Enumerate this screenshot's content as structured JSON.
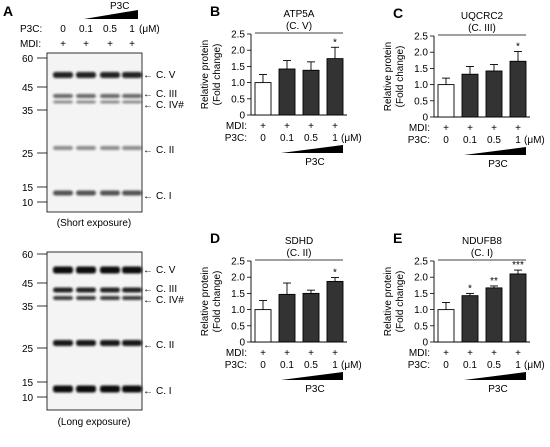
{
  "figure": {
    "panel_a": {
      "label": "A",
      "p3c_label": "P3C:",
      "p3c_title": "P3C",
      "doses": [
        "0",
        "0.1",
        "0.5",
        "1"
      ],
      "dose_unit": "(μM)",
      "mdi_label": "MDI:",
      "mdi_signs": [
        "+",
        "+",
        "+",
        "+"
      ],
      "blots": [
        {
          "caption": "(Short exposure)",
          "mw_ticks": [
            "60",
            "45",
            "35",
            "25",
            "15",
            "10"
          ],
          "bands": [
            "C. V",
            "C. III",
            "C. IV#",
            "C. II",
            "C. I"
          ]
        },
        {
          "caption": "(Long exposure)",
          "mw_ticks": [
            "60",
            "45",
            "35",
            "25",
            "15",
            "10"
          ],
          "bands": [
            "C. V",
            "C. III",
            "C. IV#",
            "C. II",
            "C. I"
          ]
        }
      ]
    }
  },
  "chart_data": [
    {
      "panel": "B",
      "type": "bar",
      "title": "ATP5A",
      "subtitle": "(C. V)",
      "ylabel": [
        "Relative protein",
        "(Fold change)"
      ],
      "ylim": [
        0,
        2.5
      ],
      "yticks": [
        "0",
        "0.5",
        "1.0",
        "1.5",
        "2.0",
        "2.5"
      ],
      "categories": [
        "0",
        "0.1",
        "0.5",
        "1"
      ],
      "mdi": [
        "+",
        "+",
        "+",
        "+"
      ],
      "values": [
        1.0,
        1.42,
        1.38,
        1.74
      ],
      "errors": [
        0.25,
        0.26,
        0.26,
        0.35
      ],
      "sig": [
        "",
        "",
        "",
        "*"
      ],
      "row_labels": [
        "MDI:",
        "P3C:"
      ],
      "unit": "(μM)",
      "group_label": "P3C"
    },
    {
      "panel": "C",
      "type": "bar",
      "title": "UQCRC2",
      "subtitle": "(C. III)",
      "ylabel": [
        "Relative protein",
        "(Fold change)"
      ],
      "ylim": [
        0,
        2.5
      ],
      "yticks": [
        "0",
        "0.5",
        "1.0",
        "1.5",
        "2.0",
        "2.5"
      ],
      "categories": [
        "0",
        "0.1",
        "0.5",
        "1"
      ],
      "mdi": [
        "+",
        "+",
        "+",
        "+"
      ],
      "values": [
        1.0,
        1.32,
        1.42,
        1.72
      ],
      "errors": [
        0.2,
        0.24,
        0.2,
        0.3
      ],
      "sig": [
        "",
        "",
        "",
        "*"
      ],
      "row_labels": [
        "MDI:",
        "P3C:"
      ],
      "unit": "(μM)",
      "group_label": "P3C"
    },
    {
      "panel": "D",
      "type": "bar",
      "title": "SDHD",
      "subtitle": "(C. II)",
      "ylabel": [
        "Relative protein",
        "(Fold change)"
      ],
      "ylim": [
        0,
        2.5
      ],
      "yticks": [
        "0",
        "0.5",
        "1.0",
        "1.5",
        "2.0",
        "2.5"
      ],
      "categories": [
        "0",
        "0.1",
        "0.5",
        "1"
      ],
      "mdi": [
        "+",
        "+",
        "+",
        "+"
      ],
      "values": [
        1.0,
        1.47,
        1.5,
        1.87
      ],
      "errors": [
        0.28,
        0.35,
        0.1,
        0.12
      ],
      "sig": [
        "",
        "",
        "",
        "*"
      ],
      "row_labels": [
        "MDI:",
        "P3C:"
      ],
      "unit": "(μM)",
      "group_label": "P3C"
    },
    {
      "panel": "E",
      "type": "bar",
      "title": "NDUFB8",
      "subtitle": "(C. I)",
      "ylabel": [
        "Relative protein",
        "(Fold change)"
      ],
      "ylim": [
        0,
        2.5
      ],
      "yticks": [
        "0",
        "0.5",
        "1.0",
        "1.5",
        "2.0",
        "2.5"
      ],
      "categories": [
        "0",
        "0.1",
        "0.5",
        "1"
      ],
      "mdi": [
        "+",
        "+",
        "+",
        "+"
      ],
      "values": [
        1.0,
        1.43,
        1.67,
        2.1
      ],
      "errors": [
        0.22,
        0.07,
        0.06,
        0.12
      ],
      "sig": [
        "",
        "*",
        "**",
        "***"
      ],
      "row_labels": [
        "MDI:",
        "P3C:"
      ],
      "unit": "(μM)",
      "group_label": "P3C"
    }
  ]
}
